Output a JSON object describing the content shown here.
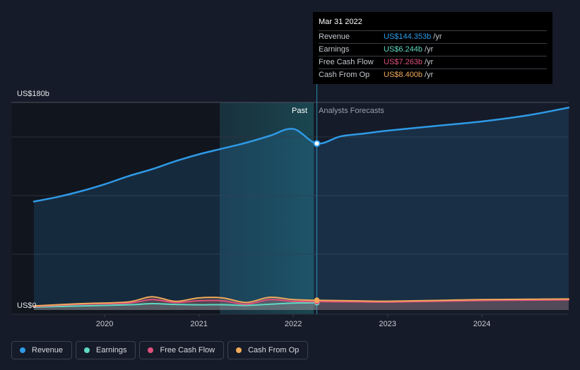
{
  "chart_data": {
    "type": "area",
    "y_axis": {
      "min_label": "US$0",
      "max_label": "US$180b",
      "ylim": [
        0,
        180
      ]
    },
    "x_axis": {
      "ticks": [
        "2020",
        "2021",
        "2022",
        "2023",
        "2024"
      ],
      "xlim": [
        2019.25,
        2024.92
      ]
    },
    "regions": {
      "past_label": "Past",
      "forecast_label": "Analysts Forecasts",
      "forecast_start": 2022.25
    },
    "series": [
      {
        "name": "Revenue",
        "color": "#2f9ae6",
        "x": [
          2019.25,
          2019.5,
          2019.75,
          2020.0,
          2020.25,
          2020.5,
          2020.75,
          2021.0,
          2021.25,
          2021.5,
          2021.75,
          2022.0,
          2022.25,
          2022.5,
          2022.75,
          2023.0,
          2023.5,
          2024.0,
          2024.5,
          2024.92
        ],
        "values": [
          94,
          98,
          103,
          109,
          116,
          122,
          129,
          135,
          140,
          145,
          151,
          157,
          144.353,
          150.5,
          153,
          155.5,
          159.5,
          163.5,
          169,
          175.5
        ],
        "note_hidden": ""
      },
      {
        "name": "Earnings",
        "color": "#5fd9c3",
        "x": [
          2019.25,
          2019.75,
          2020.25,
          2020.5,
          2020.75,
          2021.0,
          2021.25,
          2021.5,
          2021.75,
          2022.0,
          2022.25
        ],
        "values": [
          2.5,
          3.5,
          4.5,
          5.5,
          4.8,
          4.5,
          4.6,
          4.0,
          5.0,
          6.0,
          6.244
        ]
      },
      {
        "name": "Free Cash Flow",
        "color": "#e0507f",
        "x": [
          2019.25,
          2019.75,
          2020.25,
          2020.5,
          2020.75,
          2021.0,
          2021.25,
          2021.5,
          2021.75,
          2022.0,
          2022.25,
          2022.75,
          2023.0,
          2023.5,
          2024.0,
          2024.5,
          2024.92
        ],
        "values": [
          3,
          5,
          6,
          9,
          6.5,
          8,
          8,
          5,
          9,
          7.5,
          7.263,
          7.0,
          6.8,
          7.5,
          8.2,
          8.5,
          8.8
        ]
      },
      {
        "name": "Cash From Op",
        "color": "#f0a95a",
        "x": [
          2019.25,
          2019.75,
          2020.25,
          2020.5,
          2020.75,
          2021.0,
          2021.25,
          2021.5,
          2021.75,
          2022.0,
          2022.25,
          2022.75,
          2023.0,
          2023.5,
          2024.0,
          2024.5,
          2024.92
        ],
        "values": [
          3.5,
          5.5,
          7,
          11.5,
          7.5,
          10.5,
          10.5,
          6.5,
          11,
          9,
          8.4,
          7.8,
          7.6,
          8.3,
          9.0,
          9.3,
          9.6
        ]
      }
    ],
    "tooltip": {
      "date": "Mar 31 2022",
      "rows": [
        {
          "name": "Revenue",
          "value": "US$144.353b",
          "unit": "/yr",
          "color": "#2f9ae6"
        },
        {
          "name": "Earnings",
          "value": "US$6.244b",
          "unit": "/yr",
          "color": "#5fd9c3"
        },
        {
          "name": "Free Cash Flow",
          "value": "US$7.263b",
          "unit": "/yr",
          "color": "#e0507f"
        },
        {
          "name": "Cash From Op",
          "value": "US$8.400b",
          "unit": "/yr",
          "color": "#f0a95a"
        }
      ]
    }
  },
  "legend": [
    {
      "label": "Revenue",
      "color": "#2f9ae6"
    },
    {
      "label": "Earnings",
      "color": "#5fd9c3"
    },
    {
      "label": "Free Cash Flow",
      "color": "#e0507f"
    },
    {
      "label": "Cash From Op",
      "color": "#f0a95a"
    }
  ]
}
